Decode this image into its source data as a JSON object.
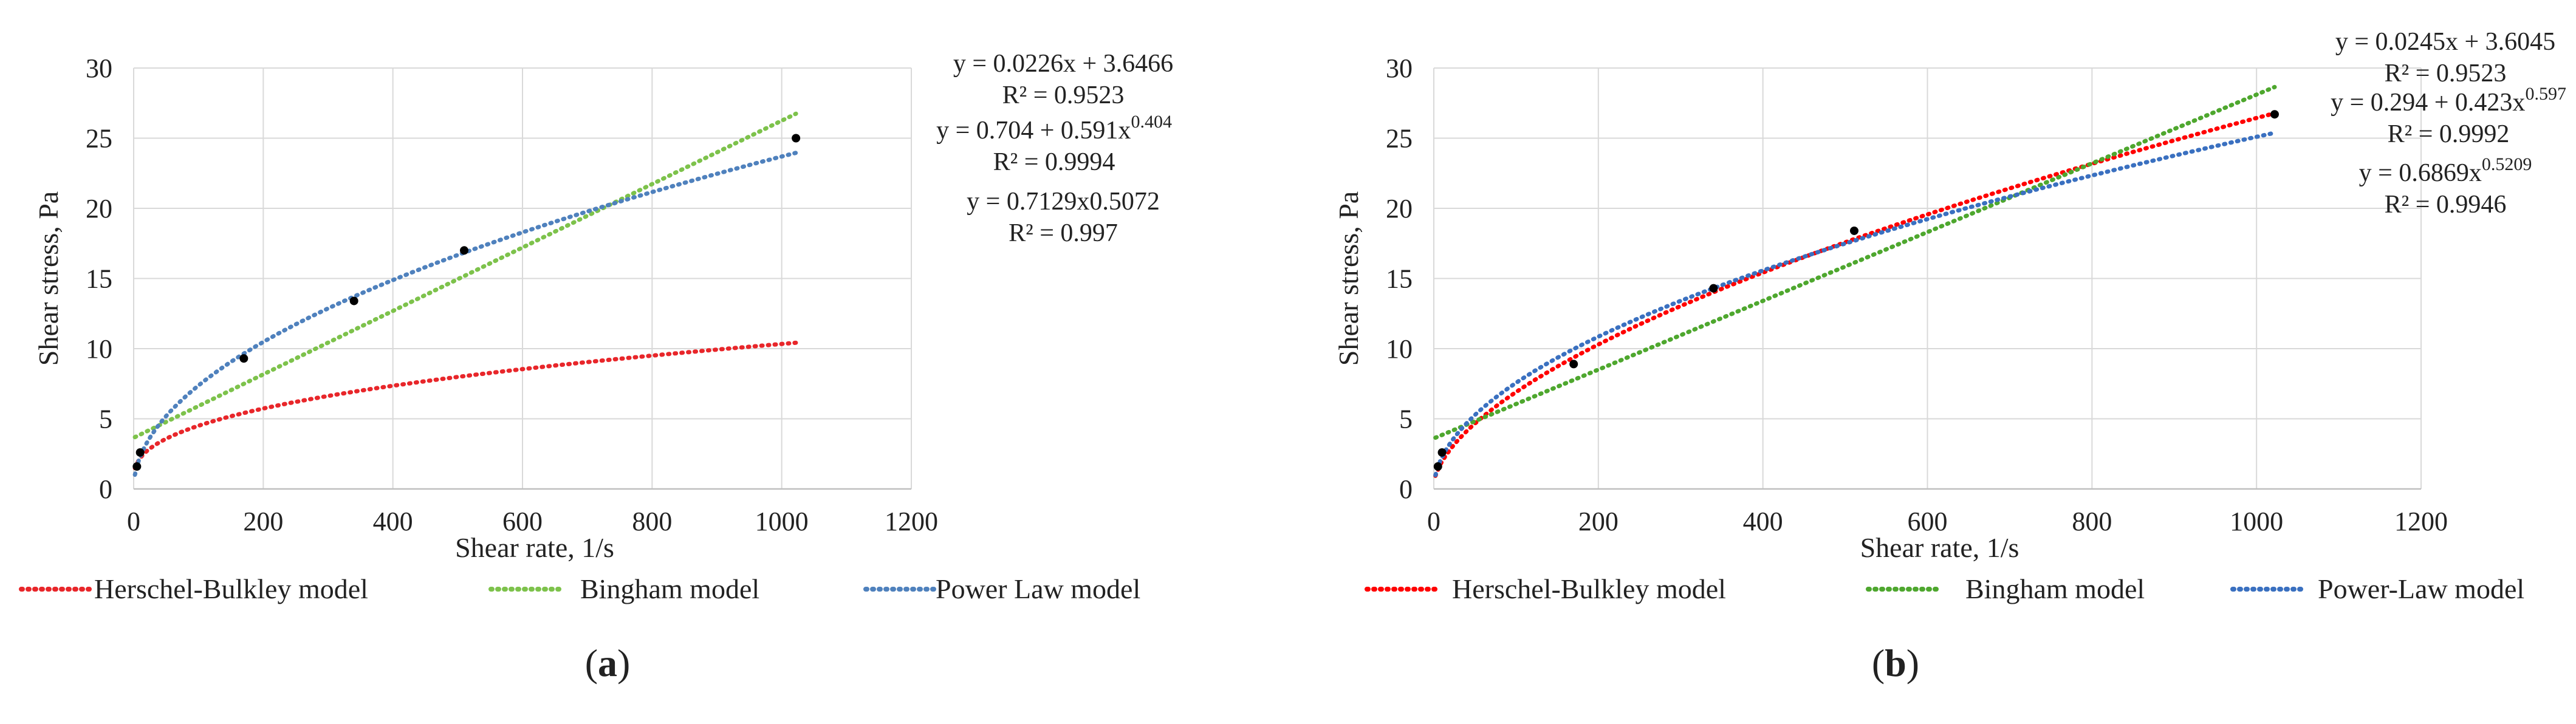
{
  "chart_data": [
    {
      "type": "scatter",
      "panel_label": "a",
      "xlabel": "Shear rate, 1/s",
      "ylabel": "Shear stress, Pa",
      "xlim": [
        0,
        1200
      ],
      "ylim": [
        0,
        30
      ],
      "xticks": [
        0,
        200,
        400,
        600,
        800,
        1000,
        1200
      ],
      "yticks": [
        0,
        5,
        10,
        15,
        20,
        25,
        30
      ],
      "grid": true,
      "legend_position": "bottom",
      "points": [
        {
          "x": 5,
          "y": 1.6
        },
        {
          "x": 10,
          "y": 2.6
        },
        {
          "x": 170,
          "y": 9.3
        },
        {
          "x": 340,
          "y": 13.4
        },
        {
          "x": 510,
          "y": 17.0
        },
        {
          "x": 1022,
          "y": 25.0
        }
      ],
      "models": [
        {
          "name": "Herschel-Bulkley model",
          "color": "#e8262a",
          "kind": "hb",
          "tau0": 0.704,
          "k": 0.591,
          "n": 0.404
        },
        {
          "name": "Bingham model",
          "color": "#7dc24b",
          "kind": "linear",
          "a": 0.0226,
          "b": 3.6466
        },
        {
          "name": "Power Law model",
          "color": "#4f81bd",
          "kind": "power",
          "k": 0.7129,
          "n": 0.5072
        }
      ],
      "annotations": [
        {
          "eq": "y = 0.0226x + 3.6466",
          "r2": "R² = 0.9523"
        },
        {
          "eq": "y = 0.704 + 0.591x",
          "sup": "0.404",
          "r2": "R² = 0.9994"
        },
        {
          "eq": "y = 0.7129x0.5072",
          "r2": "R² = 0.997"
        }
      ],
      "caption": "a"
    },
    {
      "type": "scatter",
      "panel_label": "b",
      "xlabel": "Shear rate, 1/s",
      "ylabel": "Shear stress, Pa",
      "xlim": [
        0,
        1200
      ],
      "ylim": [
        0,
        30
      ],
      "xticks": [
        0,
        200,
        400,
        600,
        800,
        1000,
        1200
      ],
      "yticks": [
        0,
        5,
        10,
        15,
        20,
        25,
        30
      ],
      "grid": true,
      "legend_position": "bottom",
      "points": [
        {
          "x": 5,
          "y": 1.6
        },
        {
          "x": 10,
          "y": 2.6
        },
        {
          "x": 170,
          "y": 8.9
        },
        {
          "x": 340,
          "y": 14.3
        },
        {
          "x": 511,
          "y": 18.4
        },
        {
          "x": 1022,
          "y": 26.7
        }
      ],
      "models": [
        {
          "name": "Herschel-Bulkley model",
          "color": "#ff0000",
          "kind": "hb",
          "tau0": 0.294,
          "k": 0.423,
          "n": 0.597
        },
        {
          "name": "Bingham model",
          "color": "#4ea72e",
          "kind": "linear",
          "a": 0.0245,
          "b": 3.6045
        },
        {
          "name": "Power-Law model",
          "color": "#3a70c0",
          "kind": "power",
          "k": 0.6869,
          "n": 0.5209
        }
      ],
      "annotations": [
        {
          "eq": "y = 0.0245x + 3.6045",
          "r2": "R² = 0.9523"
        },
        {
          "eq": "y = 0.294 + 0.423x",
          "sup": "0.597",
          "r2": "R² = 0.9992"
        },
        {
          "eq": "y = 0.6869x",
          "sup": "0.5209",
          "r2": "R² = 0.9946"
        }
      ],
      "caption": "b"
    }
  ]
}
